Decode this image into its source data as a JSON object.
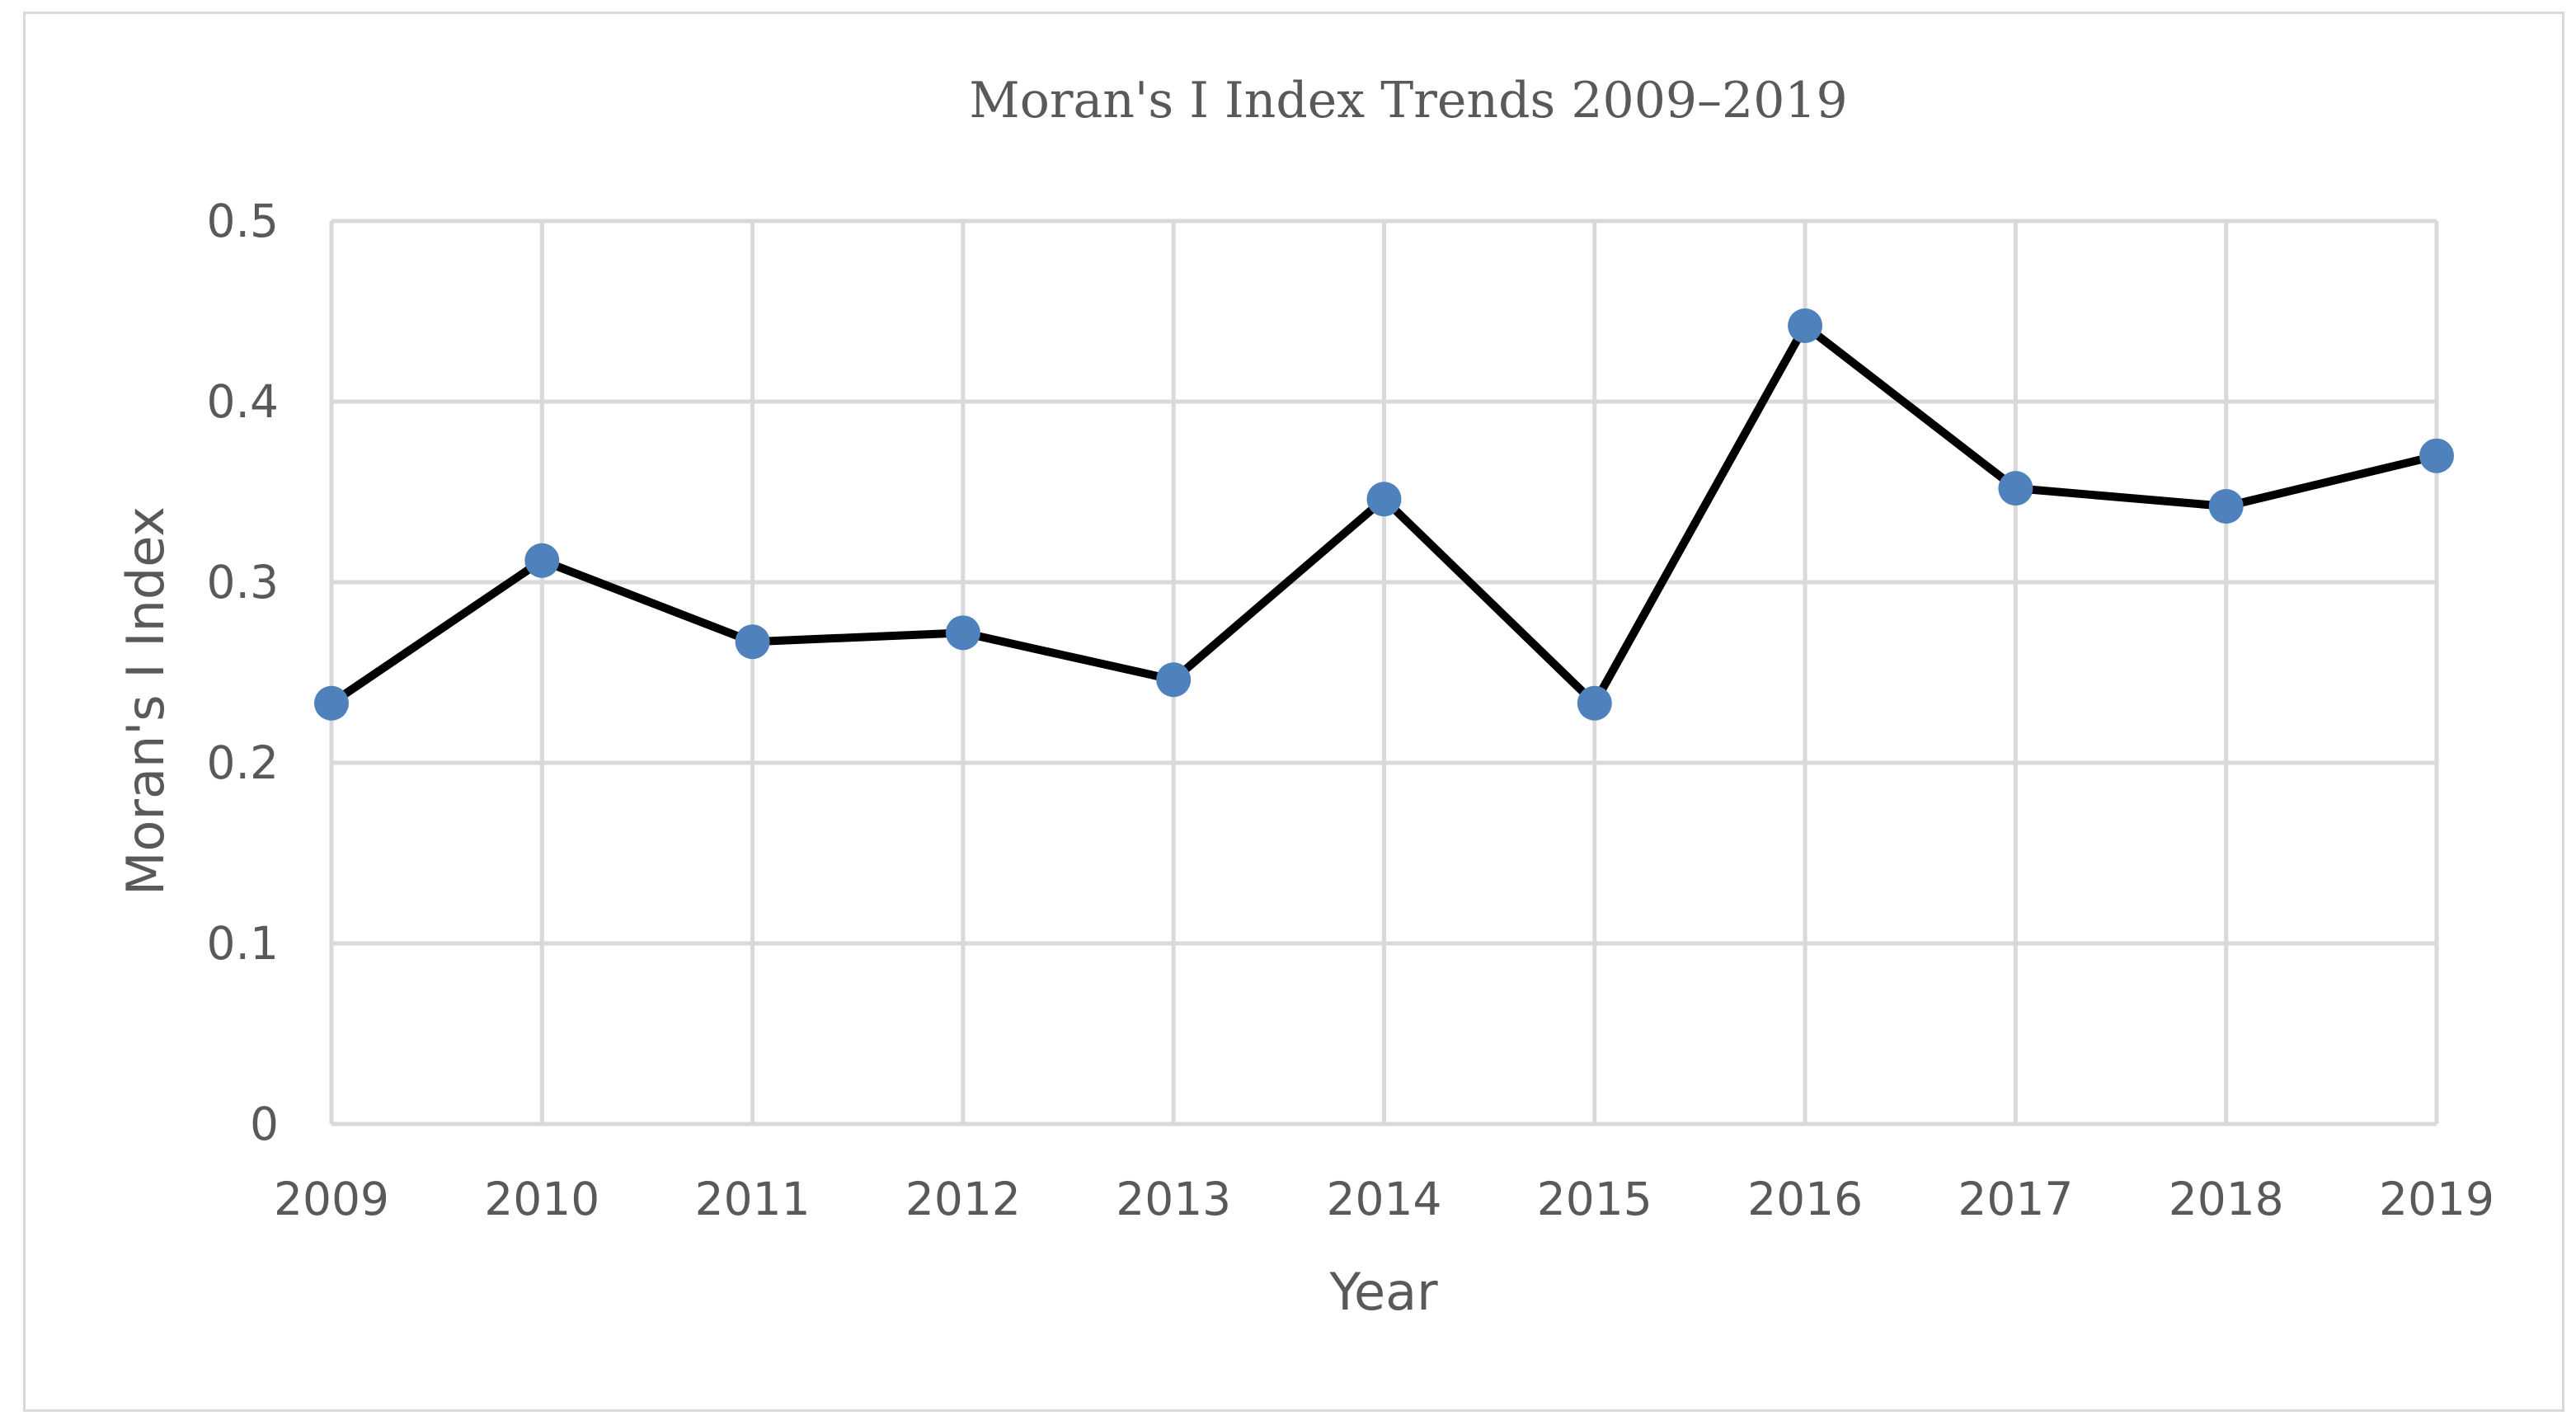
{
  "chart_data": {
    "type": "line",
    "title": "Moran's I Index Trends 2009–2019",
    "xlabel": "Year",
    "ylabel": "Moran's I Index",
    "categories": [
      "2009",
      "2010",
      "2011",
      "2012",
      "2013",
      "2014",
      "2015",
      "2016",
      "2017",
      "2018",
      "2019"
    ],
    "series": [
      {
        "name": "Moran's I Index",
        "values": [
          0.233,
          0.312,
          0.267,
          0.272,
          0.246,
          0.346,
          0.233,
          0.442,
          0.352,
          0.342,
          0.37
        ]
      }
    ],
    "ylim": [
      0,
      0.5
    ],
    "yticks": [
      "0",
      "0.1",
      "0.2",
      "0.3",
      "0.4",
      "0.5"
    ],
    "grid": true,
    "legend": "none",
    "colors": {
      "line": "#000000",
      "marker": "#4f81bd",
      "grid": "#d9d9d9",
      "text": "#595959"
    }
  }
}
